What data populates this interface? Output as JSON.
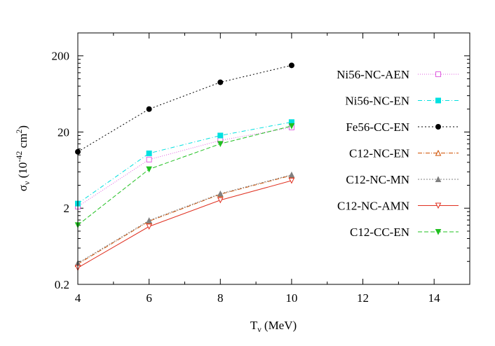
{
  "chart_data": {
    "type": "line",
    "xlabel": "T",
    "xlabel_sub": "ν",
    "xlabel_unit": " (MeV)",
    "ylabel": "σ",
    "ylabel_sub": "ν",
    "ylabel_unit_open": " (10",
    "ylabel_exp": "-42",
    "ylabel_unit_mid": " cm",
    "ylabel_exp2": "2",
    "ylabel_unit_close": ")",
    "y_scale": "log",
    "xlim": [
      4,
      15
    ],
    "ylim": [
      0.2,
      400
    ],
    "xticks": [
      4,
      6,
      8,
      10,
      12,
      14
    ],
    "yticks": [
      0.2,
      2,
      20,
      200
    ],
    "ytick_labels": [
      "0.2",
      "2",
      "20",
      "200"
    ],
    "legend_position": "right",
    "x": [
      4,
      6,
      8,
      10
    ],
    "series": [
      {
        "name": "Ni56-NC-AEN",
        "color": "#e060e0",
        "dash": "1,2",
        "marker": "square-open",
        "values": [
          2.1,
          8.7,
          15.5,
          23
        ]
      },
      {
        "name": "Ni56-NC-EN",
        "color": "#00e0e0",
        "dash": "6,3,1,3",
        "marker": "square-filled",
        "values": [
          2.3,
          10.5,
          18,
          27
        ]
      },
      {
        "name": "Fe56-CC-EN",
        "color": "#000000",
        "dash": "2,3",
        "marker": "circle-filled",
        "values": [
          11,
          40,
          90,
          150
        ]
      },
      {
        "name": "C12-NC-EN",
        "color": "#d05000",
        "dash": "6,2,1,2",
        "marker": "triangle-open",
        "values": [
          0.37,
          1.35,
          3.05,
          5.4
        ]
      },
      {
        "name": "C12-NC-MN",
        "color": "#808080",
        "dash": "2,2",
        "marker": "triangle-filled",
        "values": [
          0.38,
          1.38,
          3.1,
          5.5
        ]
      },
      {
        "name": "C12-NC-AMN",
        "color": "#e03020",
        "dash": "",
        "marker": "triangle-down-open",
        "values": [
          0.33,
          1.15,
          2.55,
          4.6
        ]
      },
      {
        "name": "C12-CC-EN",
        "color": "#20c020",
        "dash": "6,3",
        "marker": "triangle-down-filled",
        "values": [
          1.2,
          6.5,
          14,
          24
        ]
      }
    ]
  }
}
